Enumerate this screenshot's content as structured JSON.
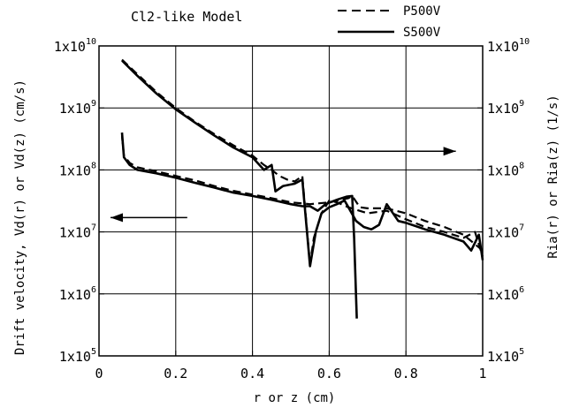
{
  "chart_data": {
    "type": "line",
    "title": "Cl2-like Model",
    "xlabel": "r or z  (cm)",
    "ylabel_left": "Drift velocity, Vd(r) or Vd(z)  (cm/s)",
    "ylabel_right": "Ria(r) or Ria(z)  (1/s)",
    "xlim": [
      0,
      1
    ],
    "ylim": [
      100000,
      10000000000
    ],
    "yscale": "log",
    "grid": true,
    "legend_position": "top-right, outside plot area",
    "x_ticks": [
      "0",
      "0.2",
      "0.4",
      "0.6",
      "0.8",
      "1"
    ],
    "y_tick_exponents": [
      "5",
      "6",
      "7",
      "8",
      "9",
      "10"
    ],
    "y_tick_base": "1x10",
    "series": [
      {
        "name": "P500V",
        "style": "dashed",
        "group": "Ria (right axis)",
        "points": [
          [
            0.06,
            6000000000
          ],
          [
            0.1,
            3500000000
          ],
          [
            0.15,
            1800000000
          ],
          [
            0.2,
            1000000000
          ],
          [
            0.25,
            600000000
          ],
          [
            0.3,
            380000000
          ],
          [
            0.35,
            250000000
          ],
          [
            0.4,
            170000000
          ],
          [
            0.43,
            120000000
          ],
          [
            0.45,
            100000000
          ],
          [
            0.47,
            80000000
          ],
          [
            0.49,
            70000000
          ],
          [
            0.51,
            65000000
          ],
          [
            0.53,
            80000000
          ],
          [
            0.55,
            3000000
          ],
          [
            0.56,
            8000000
          ],
          [
            0.58,
            20000000
          ],
          [
            0.6,
            32000000
          ],
          [
            0.62,
            30000000
          ],
          [
            0.65,
            25000000
          ],
          [
            0.7,
            20000000
          ],
          [
            0.75,
            22000000
          ],
          [
            0.8,
            16000000
          ],
          [
            0.85,
            12000000
          ],
          [
            0.9,
            10000000
          ],
          [
            0.95,
            8000000
          ],
          [
            0.98,
            10000000
          ],
          [
            1.0,
            4000000
          ]
        ]
      },
      {
        "name": "S500V",
        "style": "solid",
        "group": "Ria (right axis)",
        "points": [
          [
            0.06,
            5800000000
          ],
          [
            0.1,
            3300000000
          ],
          [
            0.15,
            1700000000
          ],
          [
            0.2,
            950000000
          ],
          [
            0.25,
            580000000
          ],
          [
            0.3,
            360000000
          ],
          [
            0.35,
            230000000
          ],
          [
            0.4,
            160000000
          ],
          [
            0.43,
            100000000
          ],
          [
            0.45,
            120000000
          ],
          [
            0.46,
            45000000
          ],
          [
            0.48,
            55000000
          ],
          [
            0.51,
            60000000
          ],
          [
            0.53,
            70000000
          ],
          [
            0.55,
            2800000
          ],
          [
            0.565,
            10000000
          ],
          [
            0.58,
            20000000
          ],
          [
            0.6,
            25000000
          ],
          [
            0.62,
            28000000
          ],
          [
            0.64,
            32000000
          ],
          [
            0.65,
            25000000
          ],
          [
            0.67,
            15000000
          ],
          [
            0.69,
            12000000
          ],
          [
            0.71,
            11000000
          ],
          [
            0.73,
            13000000
          ],
          [
            0.75,
            28000000
          ],
          [
            0.78,
            15000000
          ],
          [
            0.8,
            14000000
          ],
          [
            0.85,
            11000000
          ],
          [
            0.9,
            9000000
          ],
          [
            0.95,
            7000000
          ],
          [
            0.97,
            5000000
          ],
          [
            0.99,
            9000000
          ],
          [
            1.0,
            3500000
          ]
        ]
      },
      {
        "name": "P500V",
        "style": "dashed",
        "group": "Vd (left axis)",
        "points": [
          [
            0.06,
            350000000
          ],
          [
            0.065,
            170000000
          ],
          [
            0.08,
            130000000
          ],
          [
            0.1,
            110000000
          ],
          [
            0.15,
            95000000
          ],
          [
            0.2,
            80000000
          ],
          [
            0.25,
            68000000
          ],
          [
            0.3,
            55000000
          ],
          [
            0.35,
            46000000
          ],
          [
            0.4,
            40000000
          ],
          [
            0.45,
            35000000
          ],
          [
            0.5,
            30000000
          ],
          [
            0.55,
            28000000
          ],
          [
            0.6,
            30000000
          ],
          [
            0.65,
            35000000
          ],
          [
            0.66,
            38000000
          ],
          [
            0.68,
            25000000
          ],
          [
            0.7,
            24000000
          ],
          [
            0.75,
            24000000
          ],
          [
            0.8,
            20000000
          ],
          [
            0.85,
            15000000
          ],
          [
            0.9,
            12000000
          ],
          [
            0.95,
            9000000
          ],
          [
            1.0,
            5000000
          ]
        ]
      },
      {
        "name": "S500V",
        "style": "solid",
        "group": "Vd (left axis)",
        "points": [
          [
            0.06,
            400000000
          ],
          [
            0.065,
            160000000
          ],
          [
            0.08,
            120000000
          ],
          [
            0.1,
            100000000
          ],
          [
            0.15,
            88000000
          ],
          [
            0.2,
            75000000
          ],
          [
            0.25,
            62000000
          ],
          [
            0.3,
            52000000
          ],
          [
            0.35,
            43000000
          ],
          [
            0.4,
            38000000
          ],
          [
            0.45,
            33000000
          ],
          [
            0.5,
            28000000
          ],
          [
            0.53,
            26000000
          ],
          [
            0.55,
            26000000
          ],
          [
            0.57,
            22000000
          ],
          [
            0.59,
            28000000
          ],
          [
            0.62,
            33000000
          ],
          [
            0.645,
            37000000
          ],
          [
            0.66,
            38000000
          ],
          [
            0.665,
            8000000
          ],
          [
            0.672,
            400000
          ]
        ]
      }
    ],
    "annotations": [
      {
        "kind": "arrow",
        "direction": "right",
        "meaning": "curves read on right axis",
        "from": [
          0.37,
          200000000
        ],
        "to": [
          0.93,
          200000000
        ]
      },
      {
        "kind": "arrow",
        "direction": "left",
        "meaning": "curves read on left axis",
        "from": [
          0.23,
          17000000
        ],
        "to": [
          0.03,
          17000000
        ]
      }
    ]
  }
}
